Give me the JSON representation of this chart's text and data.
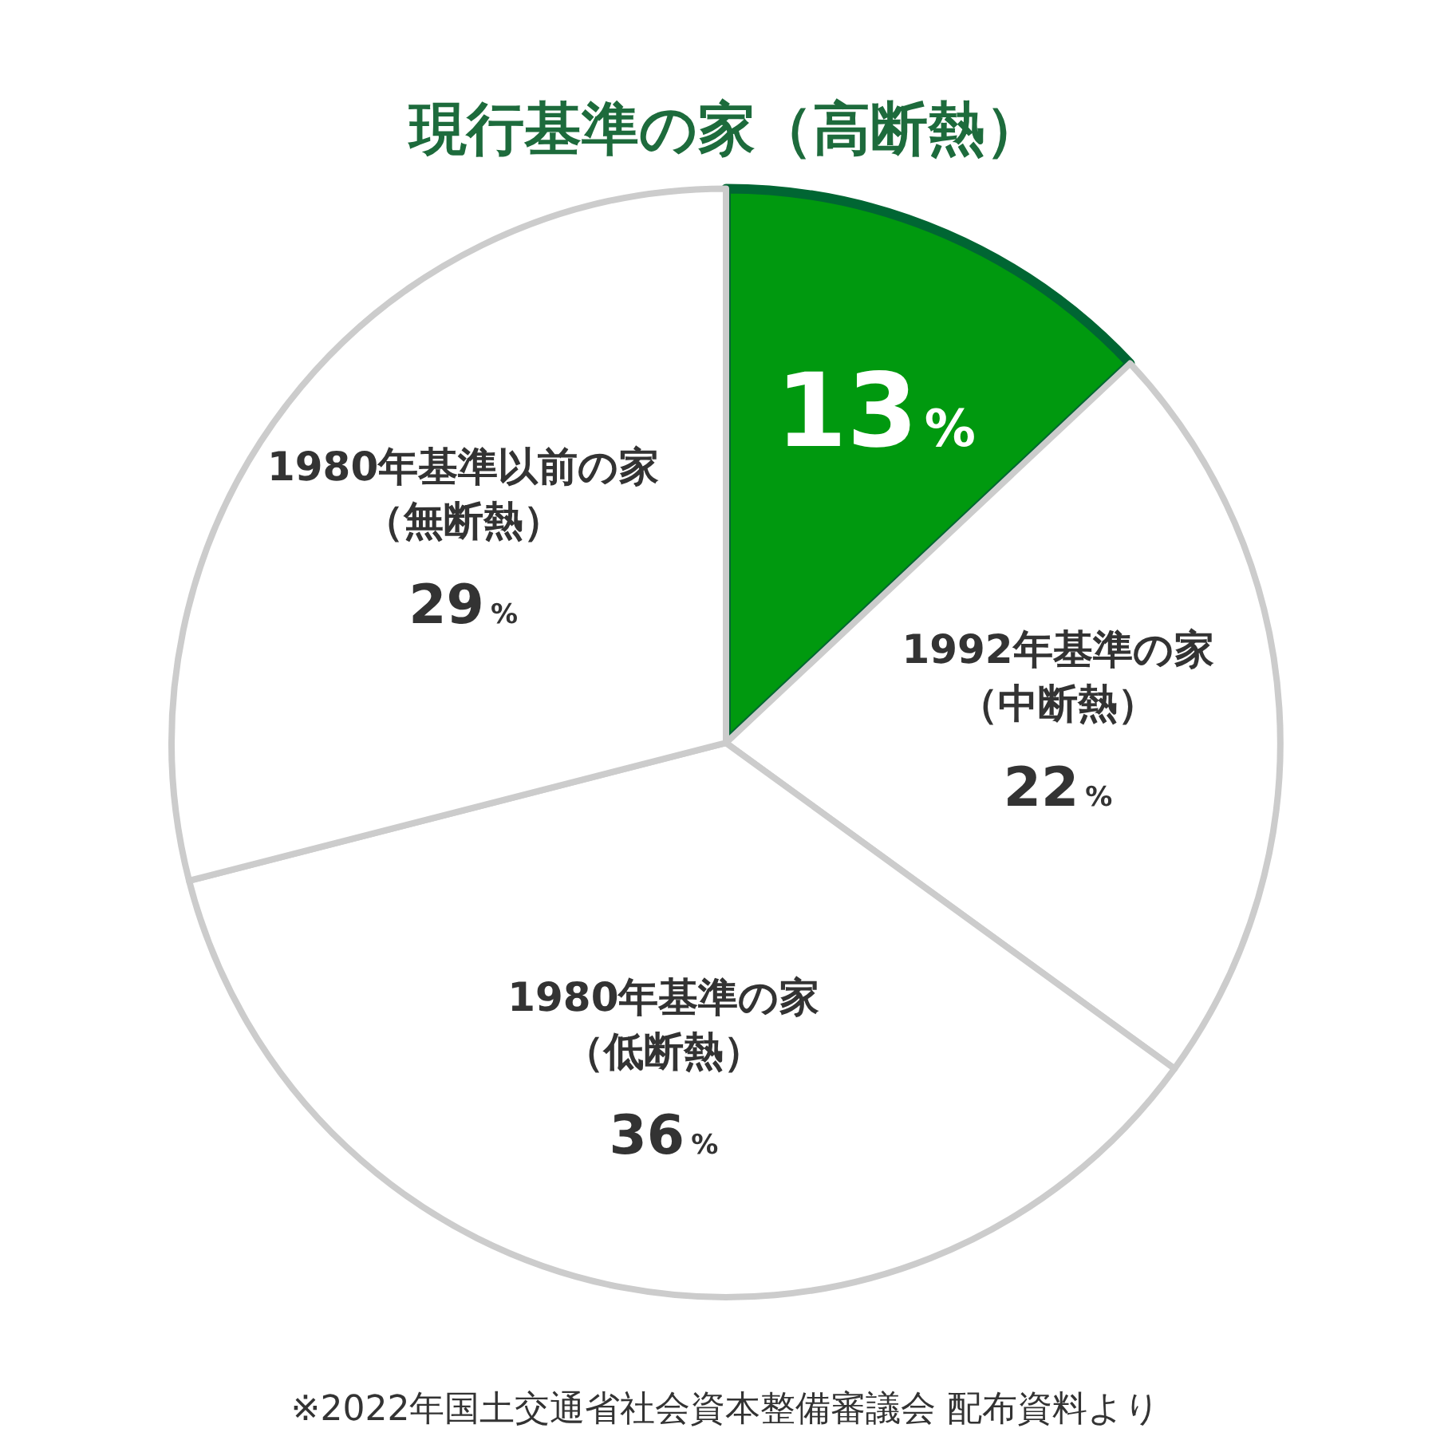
{
  "chart_data": {
    "type": "pie",
    "title": "現行基準の家（高断熱）",
    "categories": [
      null,
      "1992年基準の家（中断熱）",
      "1980年基準の家（低断熱）",
      "1980年基準以前の家（無断熱）"
    ],
    "values": [
      13,
      22,
      36,
      29
    ],
    "value_labels": [
      "13%",
      "22%",
      "36%",
      "29%"
    ],
    "colors": [
      "#00990f",
      "#ffffff",
      "#ffffff",
      "#ffffff"
    ],
    "legend": false,
    "annotations": [
      "※2022年国土交通省社会資本整備審議会 配布資料より"
    ]
  }
}
